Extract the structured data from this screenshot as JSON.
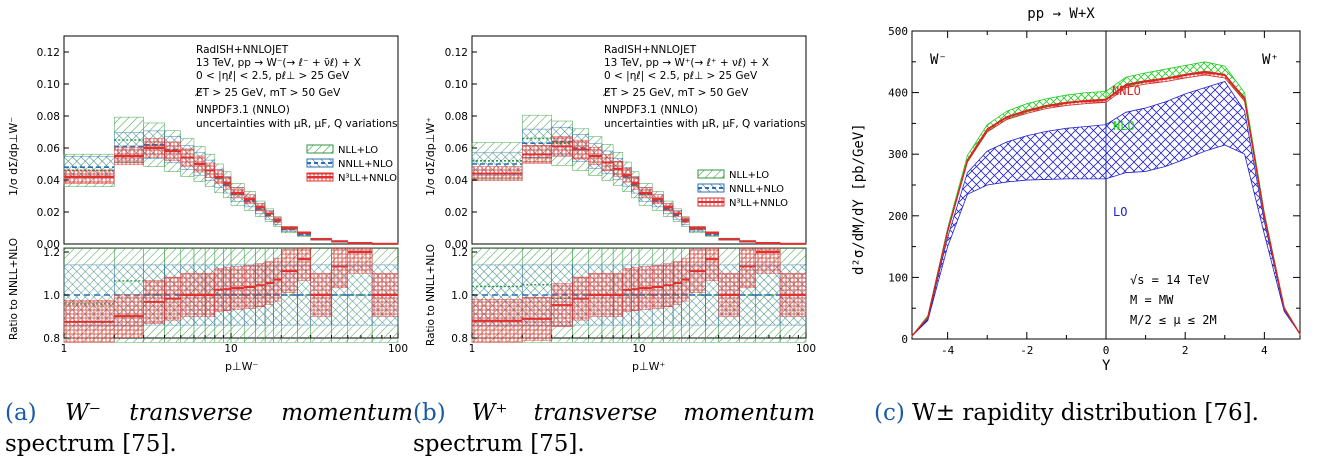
{
  "panel_a": {
    "info": [
      "RadISH+NNLOJET",
      "13 TeV, pp → W⁻(→ ℓ⁻ + ν̄ℓ) + X",
      "0 < |ηℓ| < 2.5, pℓ⊥ > 25 GeV",
      "E̸T > 25 GeV, mT > 50 GeV",
      "NNPDF3.1 (NNLO)",
      "uncertainties with μR, μF, Q variations"
    ],
    "legend": [
      "NLL+LO",
      "NNLL+NLO",
      "N³LL+NNLO"
    ],
    "ylabel_top": "1/σ dΣ/dp⊥W⁻",
    "ylabel_ratio": "Ratio to NNLL+NLO",
    "xlabel": "p⊥W⁻",
    "yticks_top": [
      "0.00",
      "0.02",
      "0.04",
      "0.06",
      "0.08",
      "0.10",
      "0.12"
    ],
    "yticks_ratio": [
      "0.8",
      "1.0",
      "1.2"
    ],
    "xticks": [
      "1",
      "10",
      "100"
    ]
  },
  "panel_b": {
    "info": [
      "RadISH+NNLOJET",
      "13 TeV, pp → W⁺(→ ℓ⁺ + νℓ) + X",
      "0 < |ηℓ| < 2.5, pℓ⊥ > 25 GeV",
      "E̸T > 25 GeV, mT > 50 GeV",
      "NNPDF3.1 (NNLO)",
      "uncertainties with μR, μF, Q variations"
    ],
    "legend": [
      "NLL+LO",
      "NNLL+NLO",
      "N³LL+NNLO"
    ],
    "ylabel_top": "1/σ dΣ/dp⊥W⁺",
    "ylabel_ratio": "Ratio to NNLL+NLO",
    "xlabel": "p⊥W⁺",
    "yticks_top": [
      "0.00",
      "0.02",
      "0.04",
      "0.06",
      "0.08",
      "0.10",
      "0.12"
    ],
    "yticks_ratio": [
      "0.8",
      "1.0",
      "1.2"
    ],
    "xticks": [
      "1",
      "10",
      "100"
    ]
  },
  "panel_c": {
    "title": "pp → W+X",
    "ylabel": "d²σ/dM/dY [pb/GeV]",
    "xlabel": "Y",
    "label_wminus": "W⁻",
    "label_wplus": "W⁺",
    "curve_labels": {
      "nnlo": "NNLO",
      "nlo": "NLO",
      "lo": "LO"
    },
    "params": [
      "√s = 14 TeV",
      "M = MW",
      "M/2 ≤ μ ≤ 2M"
    ],
    "yticks": [
      "0",
      "100",
      "200",
      "300",
      "400",
      "500"
    ],
    "xticks": [
      "-4",
      "-2",
      "0",
      "2",
      "4"
    ]
  },
  "captions": {
    "a_label": "(a)",
    "a_text_l1": "W⁻ transverse momentum",
    "a_text_l2": "spectrum [75].",
    "b_label": "(b)",
    "b_text_l1": "W⁺ transverse momentum",
    "b_text_l2": "spectrum [75].",
    "c_label": "(c)",
    "c_text": "W± rapidity distribution [76]."
  },
  "colors": {
    "green": "#2e9a3a",
    "blue": "#2c6fb0",
    "red": "#e03030",
    "c_green": "#22cc22",
    "c_blue": "#2222cc",
    "c_red": "#dd2222",
    "caption_label": "#1a5aa6"
  },
  "chart_data": [
    {
      "type": "bar",
      "panel": "a",
      "x_bins": [
        1,
        2,
        3,
        4,
        5,
        6,
        7,
        8,
        9,
        10,
        12,
        14,
        16,
        18,
        20,
        25,
        30,
        40,
        50,
        70,
        100
      ],
      "series": [
        {
          "name": "NLL+LO",
          "values": [
            0.046,
            0.065,
            0.062,
            0.058,
            0.054,
            0.05,
            0.046,
            0.041,
            0.037,
            0.031,
            0.027,
            0.022,
            0.018,
            0.014,
            0.009,
            0.006,
            0.003,
            0.0015,
            0.0005,
            0.0001
          ]
        },
        {
          "name": "NNLL+NLO",
          "values": [
            0.048,
            0.061,
            0.062,
            0.059,
            0.054,
            0.05,
            0.046,
            0.041,
            0.037,
            0.031,
            0.027,
            0.022,
            0.018,
            0.014,
            0.009,
            0.006,
            0.003,
            0.0015,
            0.0005,
            0.0001
          ]
        },
        {
          "name": "N³LL+NNLO",
          "values": [
            0.042,
            0.055,
            0.06,
            0.058,
            0.054,
            0.05,
            0.046,
            0.042,
            0.038,
            0.032,
            0.028,
            0.023,
            0.019,
            0.015,
            0.01,
            0.007,
            0.003,
            0.0017,
            0.0006,
            0.0001
          ]
        }
      ],
      "ylim": [
        0,
        0.13
      ],
      "xscale": "log"
    },
    {
      "type": "bar",
      "panel": "b",
      "x_bins": [
        1,
        2,
        3,
        4,
        5,
        6,
        7,
        8,
        9,
        10,
        12,
        14,
        16,
        18,
        20,
        25,
        30,
        40,
        50,
        70,
        100
      ],
      "series": [
        {
          "name": "NLL+LO",
          "values": [
            0.052,
            0.066,
            0.063,
            0.059,
            0.055,
            0.051,
            0.047,
            0.042,
            0.037,
            0.031,
            0.027,
            0.022,
            0.018,
            0.014,
            0.009,
            0.006,
            0.003,
            0.0015,
            0.0005,
            0.0001
          ]
        },
        {
          "name": "NNLL+NLO",
          "values": [
            0.05,
            0.063,
            0.064,
            0.06,
            0.055,
            0.051,
            0.047,
            0.042,
            0.037,
            0.031,
            0.027,
            0.022,
            0.018,
            0.014,
            0.009,
            0.006,
            0.003,
            0.0015,
            0.0005,
            0.0001
          ]
        },
        {
          "name": "N³LL+NNLO",
          "values": [
            0.044,
            0.056,
            0.061,
            0.059,
            0.055,
            0.051,
            0.047,
            0.043,
            0.038,
            0.032,
            0.028,
            0.023,
            0.019,
            0.015,
            0.01,
            0.007,
            0.003,
            0.0017,
            0.0006,
            0.0001
          ]
        }
      ],
      "ylim": [
        0,
        0.13
      ],
      "xscale": "log"
    },
    {
      "type": "area",
      "panel": "c",
      "x": [
        -4.9,
        -4.5,
        -4,
        -3.5,
        -3,
        -2.5,
        -2,
        -1.5,
        -1,
        -0.5,
        0,
        0.5,
        1,
        1.5,
        2,
        2.5,
        3,
        3.5,
        4,
        4.5,
        4.9
      ],
      "series": [
        {
          "name": "NNLO",
          "values": [
            5,
            35,
            175,
            290,
            340,
            360,
            370,
            378,
            383,
            386,
            388,
            412,
            418,
            422,
            428,
            433,
            428,
            390,
            200,
            50,
            8
          ]
        },
        {
          "name": "NLO",
          "values": [
            5,
            38,
            180,
            298,
            348,
            370,
            382,
            390,
            396,
            400,
            402,
            425,
            432,
            438,
            444,
            450,
            443,
            400,
            205,
            52,
            8
          ]
        }
      ],
      "bands": [
        {
          "name": "LO",
          "low": [
            5,
            30,
            150,
            235,
            250,
            255,
            258,
            259,
            260,
            260,
            260,
            270,
            272,
            280,
            292,
            305,
            315,
            300,
            170,
            45,
            8
          ],
          "high": [
            5,
            32,
            165,
            270,
            305,
            320,
            330,
            337,
            342,
            345,
            348,
            368,
            375,
            385,
            398,
            408,
            418,
            370,
            190,
            48,
            8
          ]
        }
      ],
      "ylim": [
        0,
        500
      ],
      "xlim": [
        -4.9,
        4.9
      ]
    }
  ]
}
